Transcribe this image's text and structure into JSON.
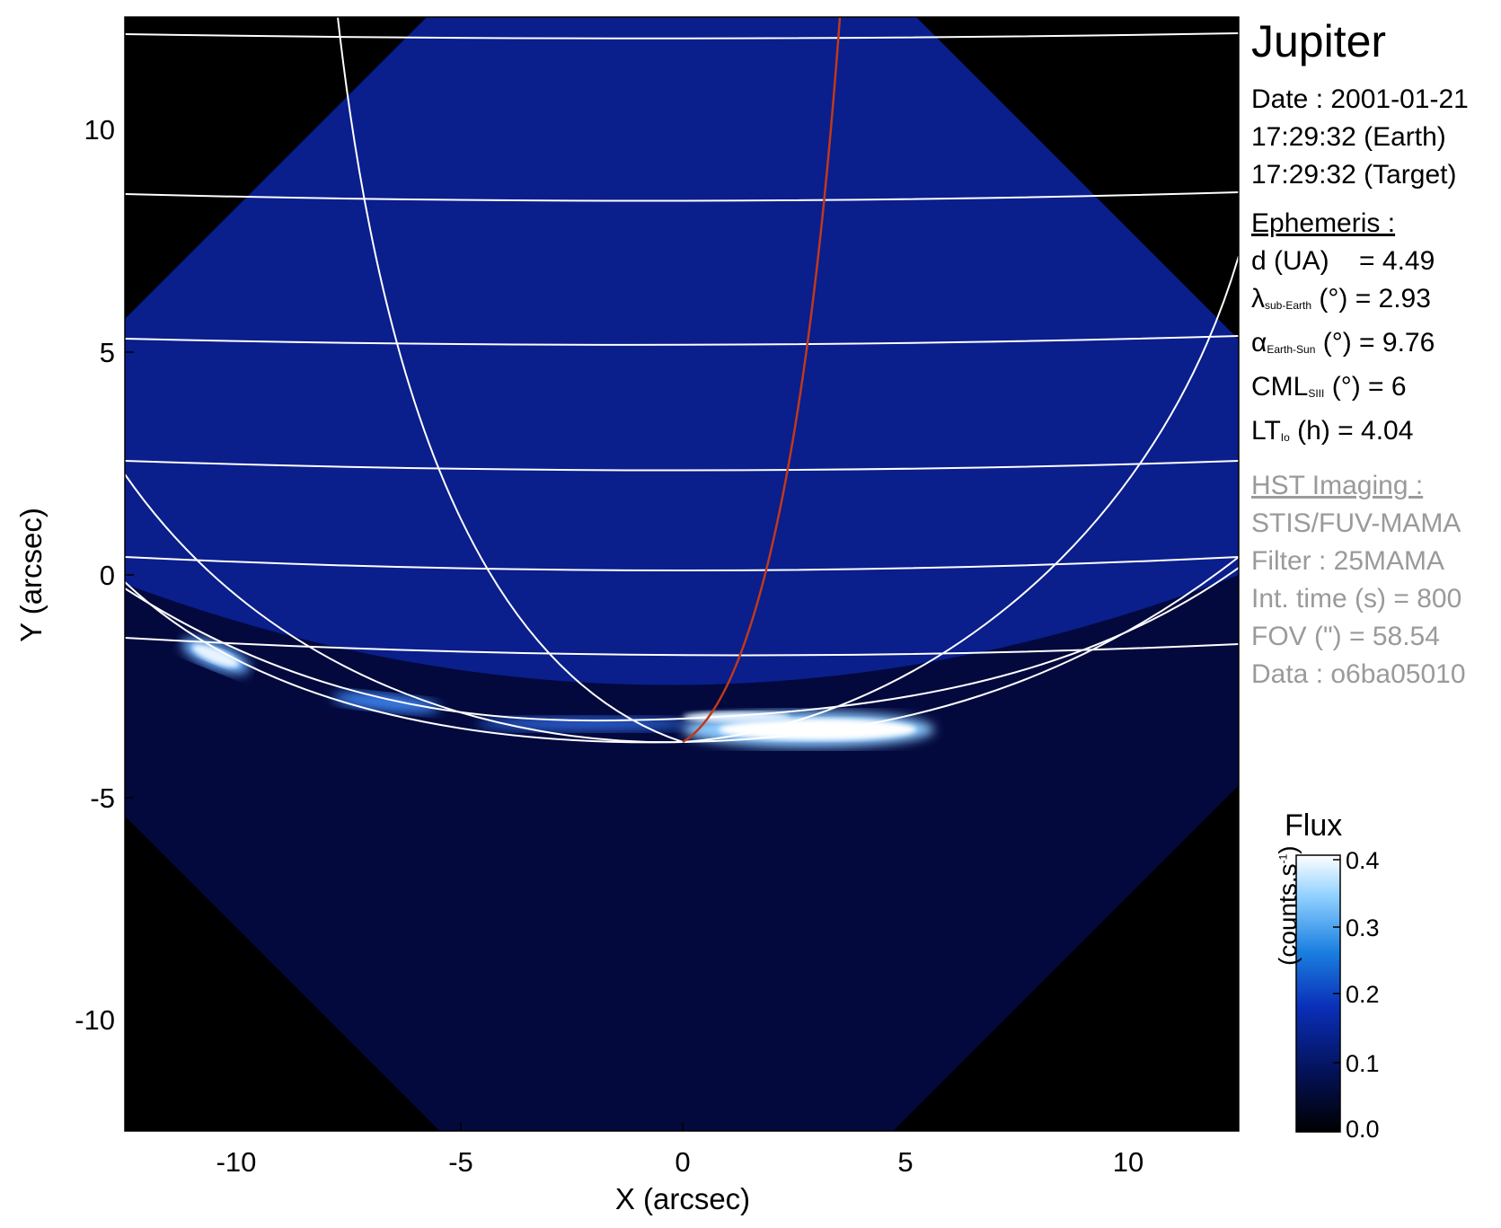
{
  "figure": {
    "target": "Jupiter",
    "xlabel": "X (arcsec)",
    "ylabel": "Y (arcsec)",
    "xlim": [
      -12.5,
      12.5
    ],
    "ylim": [
      -12.5,
      12.5
    ],
    "xticks": [
      "-10",
      "-5",
      "0",
      "5",
      "10"
    ],
    "yticks": [
      "10",
      "5",
      "0",
      "-5",
      "-10"
    ],
    "colors": {
      "background_outside_fov": "#000000",
      "fov_sky": "#0a1e8c",
      "disk_dark": "#020832",
      "grid": "#ffffff",
      "meridian_cml": "#c0391b",
      "aurora": "#eaf4ff"
    }
  },
  "info": {
    "date_line": "Date : 2001-01-21",
    "earth_time": "17:29:32 (Earth)",
    "target_time": "17:29:32 (Target)",
    "ephemeris_header": "Ephemeris :",
    "d_label": "d (UA)",
    "d_value": "= 4.49",
    "lambda_symbol": "λ",
    "lambda_sub": "sub-Earth",
    "lambda_rest": "(°) = 2.93",
    "alpha_symbol": "α",
    "alpha_sub": "Earth-Sun",
    "alpha_rest": "(°) = 9.76",
    "cml_label": "CML",
    "cml_sub": "SIII",
    "cml_rest": "(°) = 6",
    "lt_label": "LT",
    "lt_sub": "Io",
    "lt_rest": "(h) = 4.04",
    "hst_header": "HST Imaging :",
    "instrument": "STIS/FUV-MAMA",
    "filter": "Filter : 25MAMA",
    "int_time": "Int. time (s) = 800",
    "fov": "FOV (\") = 58.54",
    "data_id": "Data : o6ba05010"
  },
  "colorbar": {
    "title": "Flux",
    "unit_text": "(counts.s",
    "unit_sup": "-1",
    "unit_close": ")",
    "ticks": [
      "0.4",
      "0.3",
      "0.2",
      "0.1",
      "0.0"
    ],
    "vmin": 0.0,
    "vmax": 0.4
  }
}
